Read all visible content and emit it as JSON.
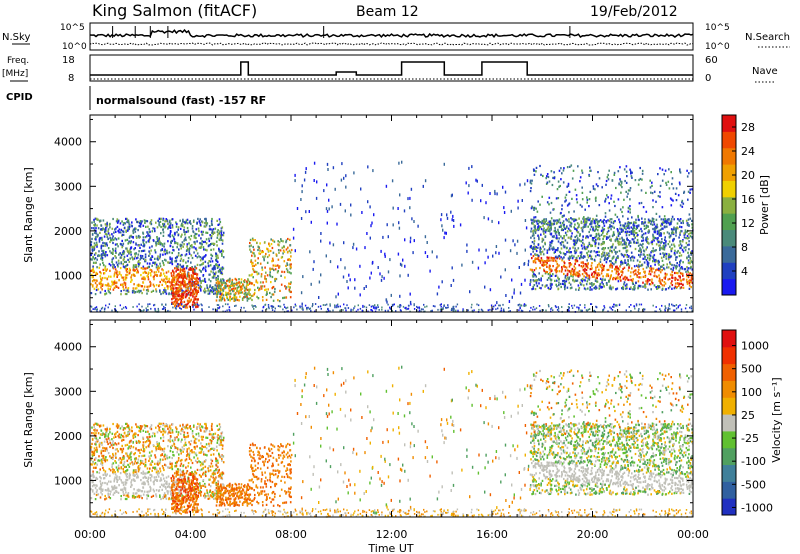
{
  "header": {
    "station": "King Salmon (fitACF)",
    "beam": "Beam 12",
    "date": "19/Feb/2012"
  },
  "strips": {
    "nsky_label": "N.Sky",
    "nsky_ticks": [
      "10^5",
      "10^0"
    ],
    "nsearch_label": "N.Search",
    "nsearch_ticks": [
      "10^5",
      "10^0"
    ],
    "freq_label": "Freq.",
    "freq_unit": "[MHz]",
    "freq_ticks": [
      "18",
      "8"
    ],
    "nave_label": "Nave",
    "nave_ticks": [
      "60",
      "0"
    ],
    "cpid_label": "CPID",
    "cpid_text": "normalsound (fast) -157 RF"
  },
  "colors": {
    "power": [
      "#1a1af0",
      "#2040c0",
      "#3a6a9a",
      "#4a8a7a",
      "#50a050",
      "#8ab040",
      "#f0d000",
      "#f0a000",
      "#f07800",
      "#f04800",
      "#e01010"
    ],
    "velocity": [
      "#2030c0",
      "#3060a0",
      "#40809a",
      "#50a060",
      "#60c030",
      "#c0c0b8",
      "#f0b000",
      "#f08c00",
      "#f06000",
      "#f03000",
      "#e01010"
    ]
  },
  "chart_data": [
    {
      "type": "heatmap",
      "panel": "power",
      "xlabel": "",
      "ylabel": "Slant Range [km]",
      "x_ticks": [
        "00:00",
        "04:00",
        "08:00",
        "12:00",
        "16:00",
        "20:00",
        "00:00"
      ],
      "xlim_hours": [
        0,
        24
      ],
      "y_ticks": [
        "1000",
        "2000",
        "3000",
        "4000"
      ],
      "ylim_km": [
        180,
        4600
      ],
      "colorbar_label": "Power [dB]",
      "colorbar_ticks": [
        "4",
        "8",
        "12",
        "16",
        "20",
        "24",
        "28"
      ],
      "colorbar_range_db": [
        0,
        30
      ]
    },
    {
      "type": "heatmap",
      "panel": "velocity",
      "xlabel": "Time UT",
      "ylabel": "Slant Range [km]",
      "x_ticks": [
        "00:00",
        "04:00",
        "08:00",
        "12:00",
        "16:00",
        "20:00",
        "00:00"
      ],
      "xlim_hours": [
        0,
        24
      ],
      "y_ticks": [
        "1000",
        "2000",
        "3000",
        "4000"
      ],
      "ylim_km": [
        180,
        4600
      ],
      "colorbar_label": "Velocity [m s⁻¹]",
      "colorbar_ticks": [
        "1000",
        "500",
        "100",
        "25",
        "-25",
        "-100",
        "-500",
        "-1000"
      ]
    }
  ]
}
